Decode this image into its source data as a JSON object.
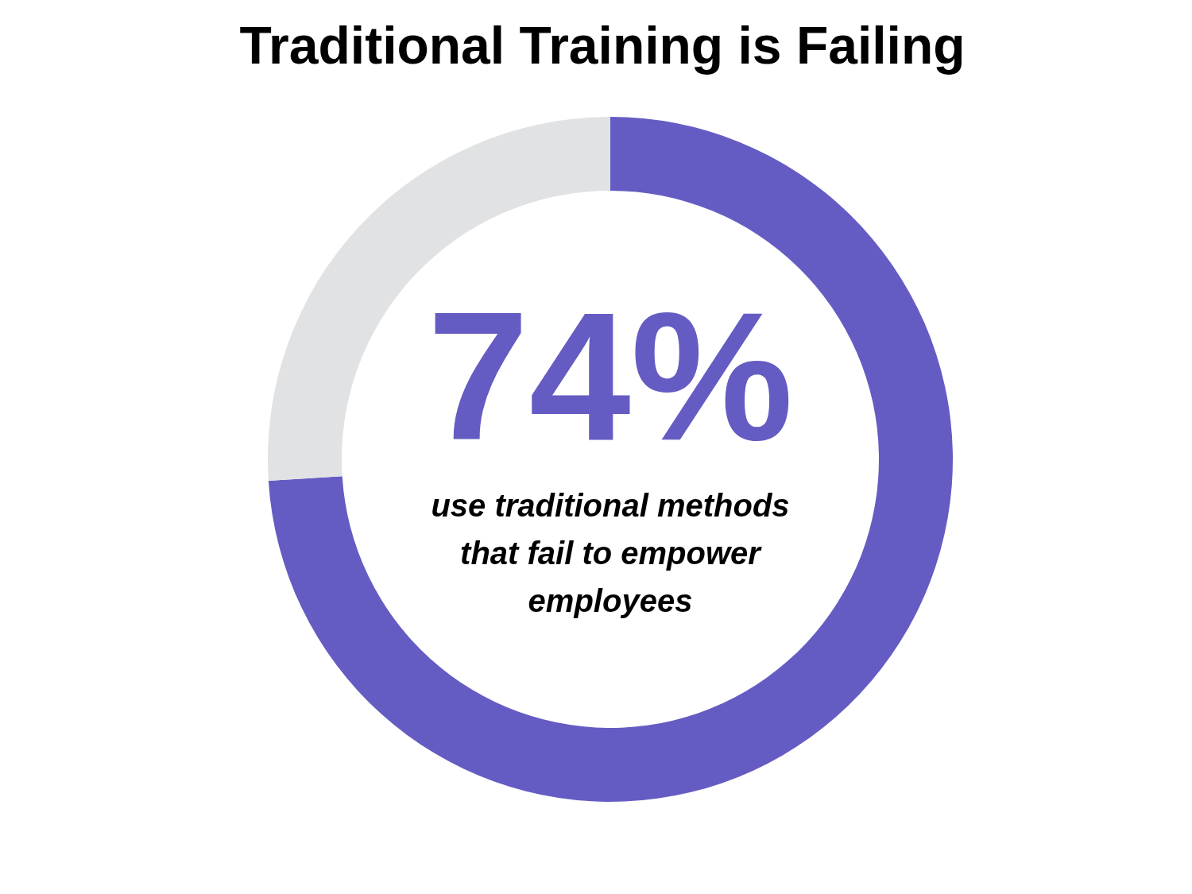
{
  "chart_data": {
    "type": "donut",
    "title": "Traditional Training is Failing",
    "categories": [
      null,
      null
    ],
    "values": [
      74,
      26
    ],
    "colors": [
      "#655cc3",
      "#e1e2e4"
    ],
    "value_labels": [
      "74%",
      null
    ],
    "annotations": [
      "use traditional methods that fail to empower employees"
    ]
  }
}
